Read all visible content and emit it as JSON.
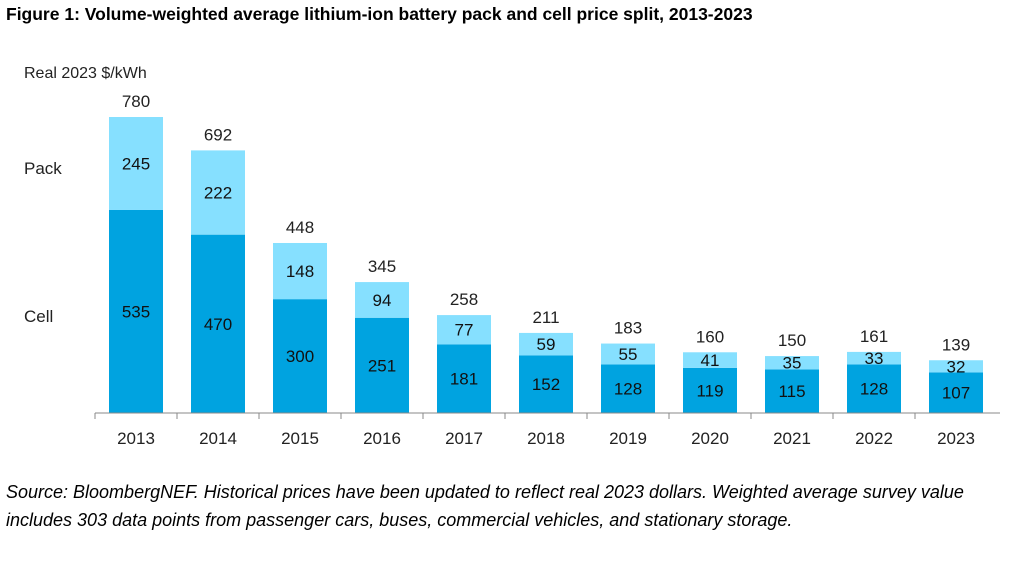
{
  "title": "Figure 1: Volume-weighted average lithium-ion battery pack and cell price split, 2013-2023",
  "source": "Source: BloombergNEF. Historical prices have been updated to reflect real 2023 dollars. Weighted average survey value includes 303 data points from passenger cars, buses, commercial vehicles, and stationary storage.",
  "chart_data": {
    "type": "bar",
    "stacked": true,
    "title": "Figure 1: Volume-weighted average lithium-ion battery pack and cell price split, 2013-2023",
    "ylabel": "Real 2023 $/kWh",
    "xlabel": "",
    "categories": [
      "2013",
      "2014",
      "2015",
      "2016",
      "2017",
      "2018",
      "2019",
      "2020",
      "2021",
      "2022",
      "2023"
    ],
    "series": [
      {
        "name": "Cell",
        "color": "#00A3E0",
        "values": [
          535,
          470,
          300,
          251,
          181,
          152,
          128,
          119,
          115,
          128,
          107
        ]
      },
      {
        "name": "Pack",
        "color": "#86E0FF",
        "values": [
          245,
          222,
          148,
          94,
          77,
          59,
          55,
          41,
          35,
          33,
          32
        ]
      }
    ],
    "totals": [
      780,
      692,
      448,
      345,
      258,
      211,
      183,
      160,
      150,
      161,
      139
    ],
    "ylim": [
      0,
      780
    ],
    "grid": false,
    "legend": "left"
  }
}
